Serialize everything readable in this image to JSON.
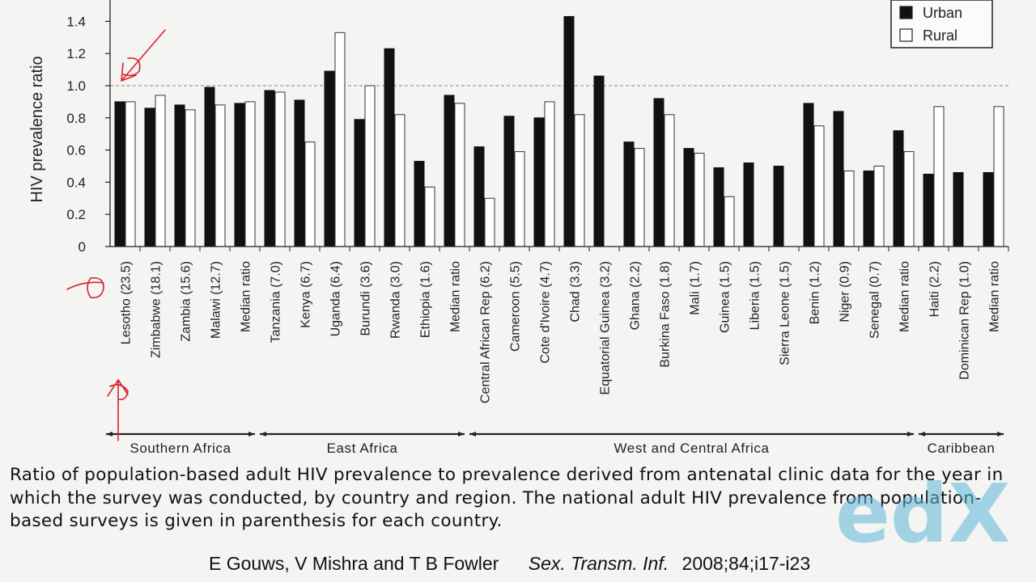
{
  "chart_data": {
    "type": "bar",
    "ylabel": "HIV prevalence ratio",
    "ylim": [
      0,
      1.5
    ],
    "yticks": [
      0,
      0.2,
      0.4,
      0.6,
      0.8,
      1.0,
      1.2,
      1.4
    ],
    "ytick_labels": [
      "0",
      "0.2",
      "0.4",
      "0.6",
      "0.8",
      "1.0",
      "1.2",
      "1.4"
    ],
    "reference_line": 1.0,
    "legend_position": "top-right",
    "categories": [
      "Lesotho (23.5)",
      "Zimbabwe (18.1)",
      "Zambia (15.6)",
      "Malawi (12.7)",
      "Median ratio",
      "Tanzania (7.0)",
      "Kenya (6.7)",
      "Uganda (6.4)",
      "Burundi (3.6)",
      "Rwanda (3.0)",
      "Ethiopia (1.6)",
      "Median ratio",
      "Central African Rep (6.2)",
      "Cameroon (5.5)",
      "Cote d'Ivoire (4.7)",
      "Chad (3.3)",
      "Equatorial Guinea (3.2)",
      "Ghana (2.2)",
      "Burkina Faso (1.8)",
      "Mali (1.7)",
      "Guinea (1.5)",
      "Liberia (1.5)",
      "Sierra Leone (1.5)",
      "Benin (1.2)",
      "Niger (0.9)",
      "Senegal (0.7)",
      "Median ratio",
      "Haiti (2.2)",
      "Dominican Rep (1.0)",
      "Median ratio"
    ],
    "series": [
      {
        "name": "Urban",
        "color": "#111111",
        "values": [
          0.9,
          0.86,
          0.88,
          0.99,
          0.89,
          0.97,
          0.91,
          1.09,
          0.79,
          1.23,
          0.53,
          0.94,
          0.62,
          0.81,
          0.8,
          1.43,
          1.06,
          0.65,
          0.92,
          0.61,
          0.49,
          0.52,
          0.5,
          0.89,
          0.84,
          0.47,
          0.72,
          0.45,
          0.46,
          0.46
        ]
      },
      {
        "name": "Rural",
        "color": "#ffffff",
        "values": [
          0.9,
          0.94,
          0.85,
          0.88,
          0.9,
          0.96,
          0.65,
          1.33,
          1.0,
          0.82,
          0.37,
          0.89,
          0.3,
          0.59,
          0.9,
          0.82,
          null,
          0.61,
          0.82,
          0.58,
          0.31,
          null,
          null,
          0.75,
          0.47,
          0.5,
          0.59,
          0.87,
          null,
          0.87
        ]
      }
    ],
    "regions": [
      {
        "name": "Southern Africa",
        "first": 0,
        "last": 4
      },
      {
        "name": "East Africa",
        "first": 5,
        "last": 11
      },
      {
        "name": "West and Central Africa",
        "first": 12,
        "last": 26
      },
      {
        "name": "Caribbean",
        "first": 27,
        "last": 29
      }
    ]
  },
  "caption": "Ratio of population-based adult HIV prevalence to prevalence derived from antenatal clinic data for the year in which the survey was conducted, by country and region. The national adult HIV prevalence from population-based surveys is given in parenthesis for each country.",
  "citation": {
    "authors": "E Gouws, V Mishra and T B Fowler",
    "journal": "Sex. Transm. Inf.",
    "ref": "2008;84;i17-i23"
  },
  "watermark": {
    "text": "edX",
    "color": "#5fb8d9",
    "accent": "#e46a86"
  }
}
